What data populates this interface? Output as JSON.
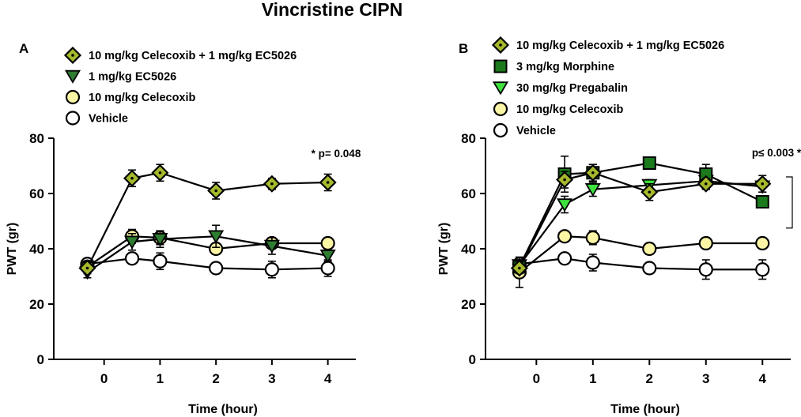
{
  "title": "Vincristine CIPN",
  "colors": {
    "combo_fill": "#a6b82c",
    "ec5026_fill": "#2e7d32",
    "morphine_fill": "#1b7a1b",
    "pregabalin_fill": "#3ee13e",
    "celecoxib_fill": "#fbf6a6",
    "vehicle_fill": "#ffffff",
    "stroke": "#000000"
  },
  "chart_data": [
    {
      "type": "line",
      "panel": "A",
      "xlabel": "Time (hour)",
      "ylabel": "PWT (gr)",
      "x_ticks": [
        0,
        1,
        2,
        3,
        4
      ],
      "x_tick_labels": [
        "0",
        "1",
        "2",
        "3",
        "4"
      ],
      "y_ticks": [
        0,
        20,
        40,
        60,
        80
      ],
      "y_tick_labels": [
        "0",
        "20",
        "40",
        "60",
        "80"
      ],
      "xlim": [
        -0.9,
        4.5
      ],
      "ylim": [
        0,
        80
      ],
      "annotation": "* p= 0.048",
      "series": [
        {
          "name": "10 mg/kg Celecoxib + 1 mg/kg EC5026",
          "marker": "diamond",
          "color": "#a6b82c",
          "x": [
            -0.3,
            0.5,
            1,
            2,
            3,
            4
          ],
          "y": [
            33,
            65.5,
            67.5,
            61,
            63.5,
            64
          ],
          "err": [
            2,
            3,
            3,
            3,
            2,
            3
          ]
        },
        {
          "name": "1 mg/kg EC5026",
          "marker": "triangle-down",
          "color": "#2e7d32",
          "x": [
            -0.3,
            0.5,
            1,
            2,
            3,
            4
          ],
          "y": [
            31.5,
            42.5,
            43.5,
            44.5,
            41,
            37.5
          ],
          "err": [
            2,
            3,
            3,
            4,
            3,
            2
          ]
        },
        {
          "name": "10 mg/kg Celecoxib",
          "marker": "circle",
          "color": "#fbf6a6",
          "x": [
            -0.3,
            0.5,
            1,
            2,
            3,
            4
          ],
          "y": [
            33.5,
            44.5,
            44,
            40,
            42,
            42
          ],
          "err": [
            2,
            2.5,
            2.5,
            2,
            2,
            2
          ]
        },
        {
          "name": "Vehicle",
          "marker": "circle",
          "color": "#ffffff",
          "x": [
            -0.3,
            0.5,
            1,
            2,
            3,
            4
          ],
          "y": [
            34.5,
            36.5,
            35.5,
            33,
            32.5,
            33
          ],
          "err": [
            2,
            2,
            3,
            2,
            3,
            3
          ]
        }
      ]
    },
    {
      "type": "line",
      "panel": "B",
      "xlabel": "Time (hour)",
      "ylabel": "PWT (gr)",
      "x_ticks": [
        0,
        1,
        2,
        3,
        4
      ],
      "x_tick_labels": [
        "0",
        "1",
        "2",
        "3",
        "4"
      ],
      "y_ticks": [
        0,
        20,
        40,
        60,
        80
      ],
      "y_tick_labels": [
        "0",
        "20",
        "40",
        "60",
        "80"
      ],
      "xlim": [
        -0.9,
        4.5
      ],
      "ylim": [
        0,
        80
      ],
      "annotation": "p≤ 0.003 *",
      "series": [
        {
          "name": "10 mg/kg Celecoxib + 1 mg/kg EC5026",
          "marker": "diamond",
          "color": "#a6b82c",
          "x": [
            -0.3,
            0.5,
            1,
            2,
            3,
            4
          ],
          "y": [
            33,
            65,
            67.5,
            60.5,
            63.5,
            63.5
          ],
          "err": [
            2,
            3,
            3,
            3,
            2,
            3
          ]
        },
        {
          "name": "3 mg/kg Morphine",
          "marker": "square",
          "color": "#1b7a1b",
          "x": [
            -0.3,
            0.5,
            1,
            2,
            3,
            4
          ],
          "y": [
            33.5,
            67,
            67.5,
            71,
            67,
            57
          ],
          "err": [
            2,
            6.5,
            3,
            2,
            3.5,
            2
          ]
        },
        {
          "name": "30 mg/kg Pregabalin",
          "marker": "triangle-down",
          "color": "#3ee13e",
          "x": [
            -0.3,
            0.5,
            1,
            2,
            3,
            4
          ],
          "y": [
            34,
            56,
            61.5,
            63,
            64.5,
            62.5
          ],
          "err": [
            2,
            3,
            2.5,
            2,
            3,
            2
          ]
        },
        {
          "name": "10 mg/kg Celecoxib",
          "marker": "circle",
          "color": "#fbf6a6",
          "x": [
            -0.3,
            0.5,
            1,
            2,
            3,
            4
          ],
          "y": [
            31.5,
            44.5,
            44,
            40,
            42,
            42
          ],
          "err": [
            5.5,
            2,
            2.5,
            2,
            2,
            2
          ]
        },
        {
          "name": "Vehicle",
          "marker": "circle",
          "color": "#ffffff",
          "x": [
            -0.3,
            0.5,
            1,
            2,
            3,
            4
          ],
          "y": [
            34.5,
            36.5,
            35,
            33,
            32.5,
            32.5
          ],
          "err": [
            2,
            2,
            3,
            2,
            3.5,
            3.5
          ]
        }
      ]
    }
  ]
}
